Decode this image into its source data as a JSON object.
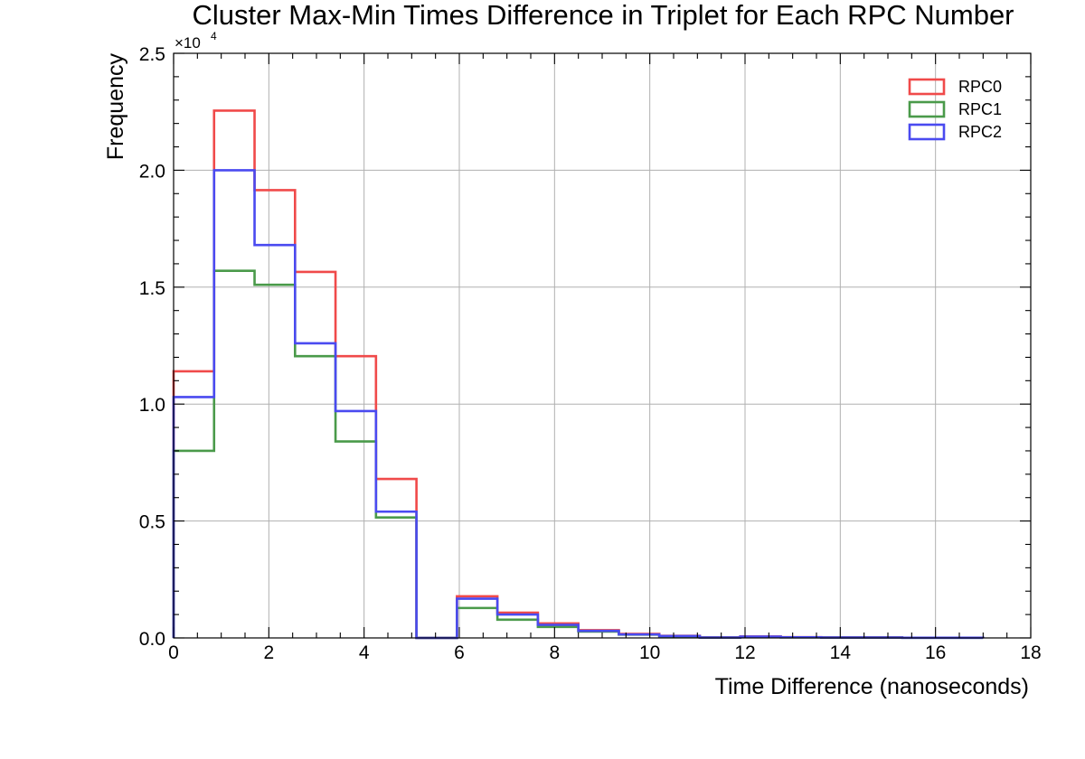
{
  "chart_data": {
    "type": "histogram",
    "title": "Cluster Max-Min Times Difference in Triplet for Each RPC Number",
    "xlabel": "Time Difference (nanoseconds)",
    "ylabel": "Frequency",
    "y_multiplier": "×10",
    "y_exponent": "4",
    "xlim": [
      0,
      18
    ],
    "ylim": [
      0,
      25000
    ],
    "grid": true,
    "legend_position": "top-right",
    "x_ticks": [
      0,
      2,
      4,
      6,
      8,
      10,
      12,
      14,
      16,
      18
    ],
    "y_ticks": [
      0,
      5000,
      10000,
      15000,
      20000,
      25000
    ],
    "y_tick_labels": [
      "0.0",
      "0.5",
      "1.0",
      "1.5",
      "2.0",
      "2.5"
    ],
    "bin_edges": [
      0,
      0.85,
      1.7,
      2.55,
      3.4,
      4.25,
      5.1,
      5.95,
      6.8,
      7.65,
      8.5,
      9.35,
      10.2,
      11.05,
      11.9,
      12.75,
      13.6,
      14.45,
      15.3,
      16.15,
      17.0
    ],
    "series": [
      {
        "name": "RPC0",
        "color": "#f04a4a",
        "values": [
          11400,
          22550,
          19150,
          15650,
          12050,
          6800,
          0,
          1780,
          1080,
          620,
          330,
          170,
          90,
          20,
          60,
          30,
          20,
          20,
          10,
          10
        ]
      },
      {
        "name": "RPC1",
        "color": "#4a9a4a",
        "values": [
          8000,
          15700,
          15100,
          12050,
          8400,
          5150,
          0,
          1280,
          780,
          470,
          270,
          140,
          70,
          15,
          45,
          25,
          15,
          15,
          8,
          8
        ]
      },
      {
        "name": "RPC2",
        "color": "#4a4af0",
        "values": [
          10300,
          20000,
          16800,
          12600,
          9700,
          5400,
          0,
          1680,
          1000,
          560,
          300,
          150,
          80,
          18,
          55,
          28,
          18,
          18,
          9,
          9
        ]
      }
    ]
  }
}
